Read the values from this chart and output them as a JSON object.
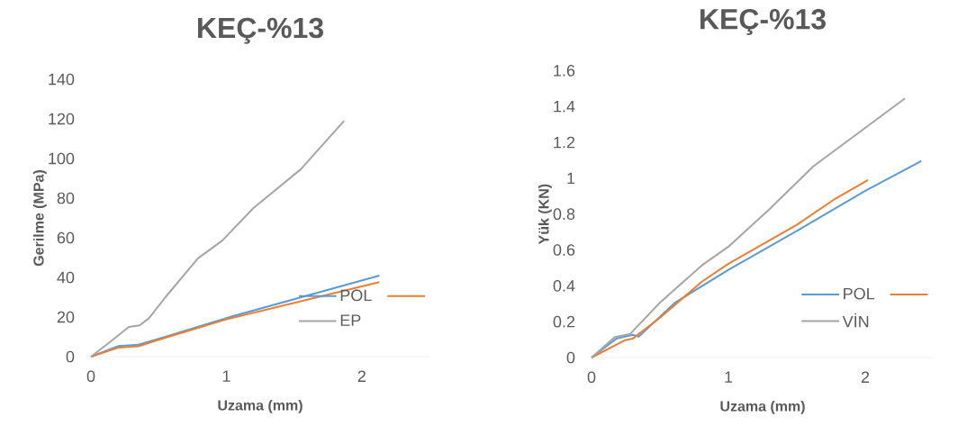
{
  "chart_data": [
    {
      "type": "line",
      "title": "KEÇ-%13",
      "xlabel": "Uzama (mm)",
      "ylabel": "Gerilme (MPa)",
      "xlim": [
        0,
        2.5
      ],
      "ylim": [
        0,
        140
      ],
      "xticks": [
        0,
        1,
        2
      ],
      "yticks": [
        0,
        20,
        40,
        60,
        80,
        100,
        120,
        140
      ],
      "legend": "bottom right",
      "series": [
        {
          "name": "POL",
          "color": "#5b9bd5",
          "x": [
            0,
            0.2,
            0.35,
            0.5,
            1.0,
            2.13
          ],
          "values": [
            0,
            5.3,
            6,
            9,
            19.5,
            40.9
          ]
        },
        {
          "color": "#ed7d31",
          "x": [
            0,
            0.2,
            0.35,
            0.5,
            1.0,
            2.13
          ],
          "values": [
            0,
            4.5,
            5.2,
            8.5,
            18.8,
            37.6
          ]
        },
        {
          "name": "EP",
          "color": "#a5a5a5",
          "x": [
            0,
            0.13,
            0.28,
            0.36,
            0.43,
            0.55,
            0.79,
            0.97,
            1.2,
            1.55,
            1.87
          ],
          "values": [
            0,
            6.8,
            15,
            15.8,
            19.5,
            30,
            49.6,
            58.6,
            75,
            94.6,
            119
          ]
        }
      ]
    },
    {
      "type": "line",
      "title": "KEÇ-%13",
      "xlabel": "Uzama (mm)",
      "ylabel": "Yük (KN)",
      "xlim": [
        0,
        2.5
      ],
      "ylim": [
        0,
        1.6
      ],
      "xticks": [
        0,
        1,
        2
      ],
      "yticks": [
        0,
        0.2,
        0.4,
        0.6,
        0.8,
        1,
        1.2,
        1.4,
        1.6
      ],
      "legend": "bottom right",
      "series": [
        {
          "name": "POL",
          "color": "#5b9bd5",
          "x": [
            0,
            0.18,
            0.3,
            0.345,
            0.61,
            1.0,
            1.5,
            2.0,
            2.41
          ],
          "values": [
            0,
            0.105,
            0.127,
            0.117,
            0.306,
            0.489,
            0.706,
            0.93,
            1.096
          ]
        },
        {
          "color": "#ed7d31",
          "x": [
            0,
            0.246,
            0.3,
            0.5,
            0.806,
            1.0,
            1.5,
            1.77,
            2.02
          ],
          "values": [
            0,
            0.097,
            0.105,
            0.222,
            0.423,
            0.523,
            0.74,
            0.88,
            0.99
          ]
        },
        {
          "name": "VİN",
          "color": "#a5a5a5",
          "x": [
            0,
            0.17,
            0.28,
            0.5,
            0.806,
            1.0,
            1.29,
            1.62,
            2.29
          ],
          "values": [
            0,
            0.114,
            0.13,
            0.306,
            0.514,
            0.618,
            0.82,
            1.066,
            1.445
          ]
        }
      ]
    }
  ]
}
